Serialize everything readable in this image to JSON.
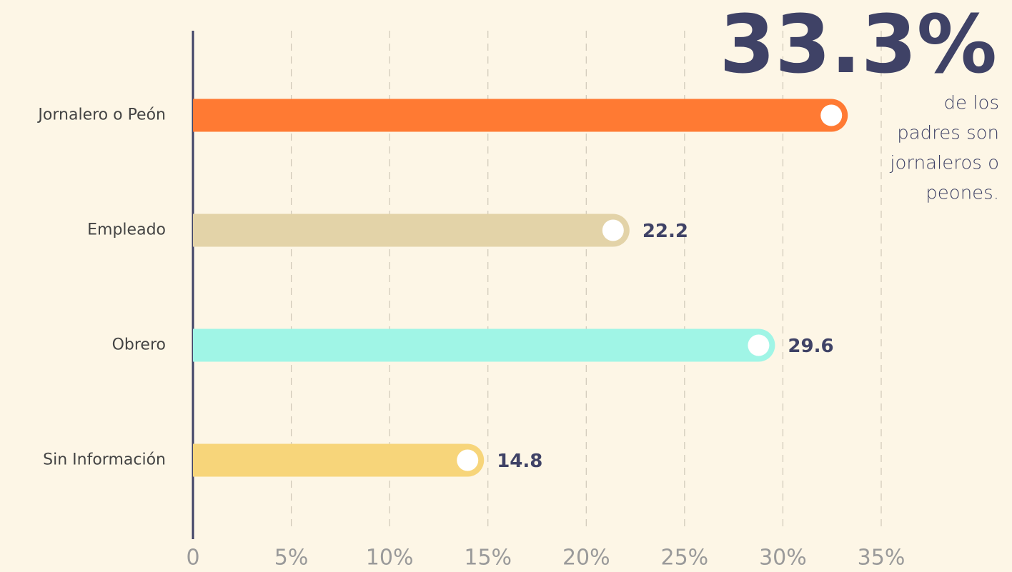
{
  "chart_data": {
    "type": "hbar",
    "categories": [
      "Jornalero o Peón",
      "Empleado",
      "Obrero",
      "Sin Información"
    ],
    "values": [
      33.3,
      22.2,
      29.6,
      14.8
    ],
    "value_labels": [
      null,
      "22.2",
      "29.6",
      "14.8"
    ],
    "colors": [
      "#ff7a33",
      "#e3d3a8",
      "#a0f5e6",
      "#f7d57a"
    ],
    "xlim": [
      0,
      35
    ],
    "xticks": [
      0,
      {
        "value": 5,
        "label": "5%"
      },
      {
        "value": 10,
        "label": "10%"
      },
      {
        "value": 15,
        "label": "15%"
      },
      {
        "value": 20,
        "label": "20%"
      },
      {
        "value": 25,
        "label": "25%"
      },
      {
        "value": 30,
        "label": "30%"
      },
      {
        "value": 35,
        "label": "35%"
      }
    ],
    "grid": true,
    "annotation": {
      "headline": "33.3%",
      "lines": [
        "de los",
        "padres son",
        "jornaleros o",
        "peones."
      ]
    }
  }
}
